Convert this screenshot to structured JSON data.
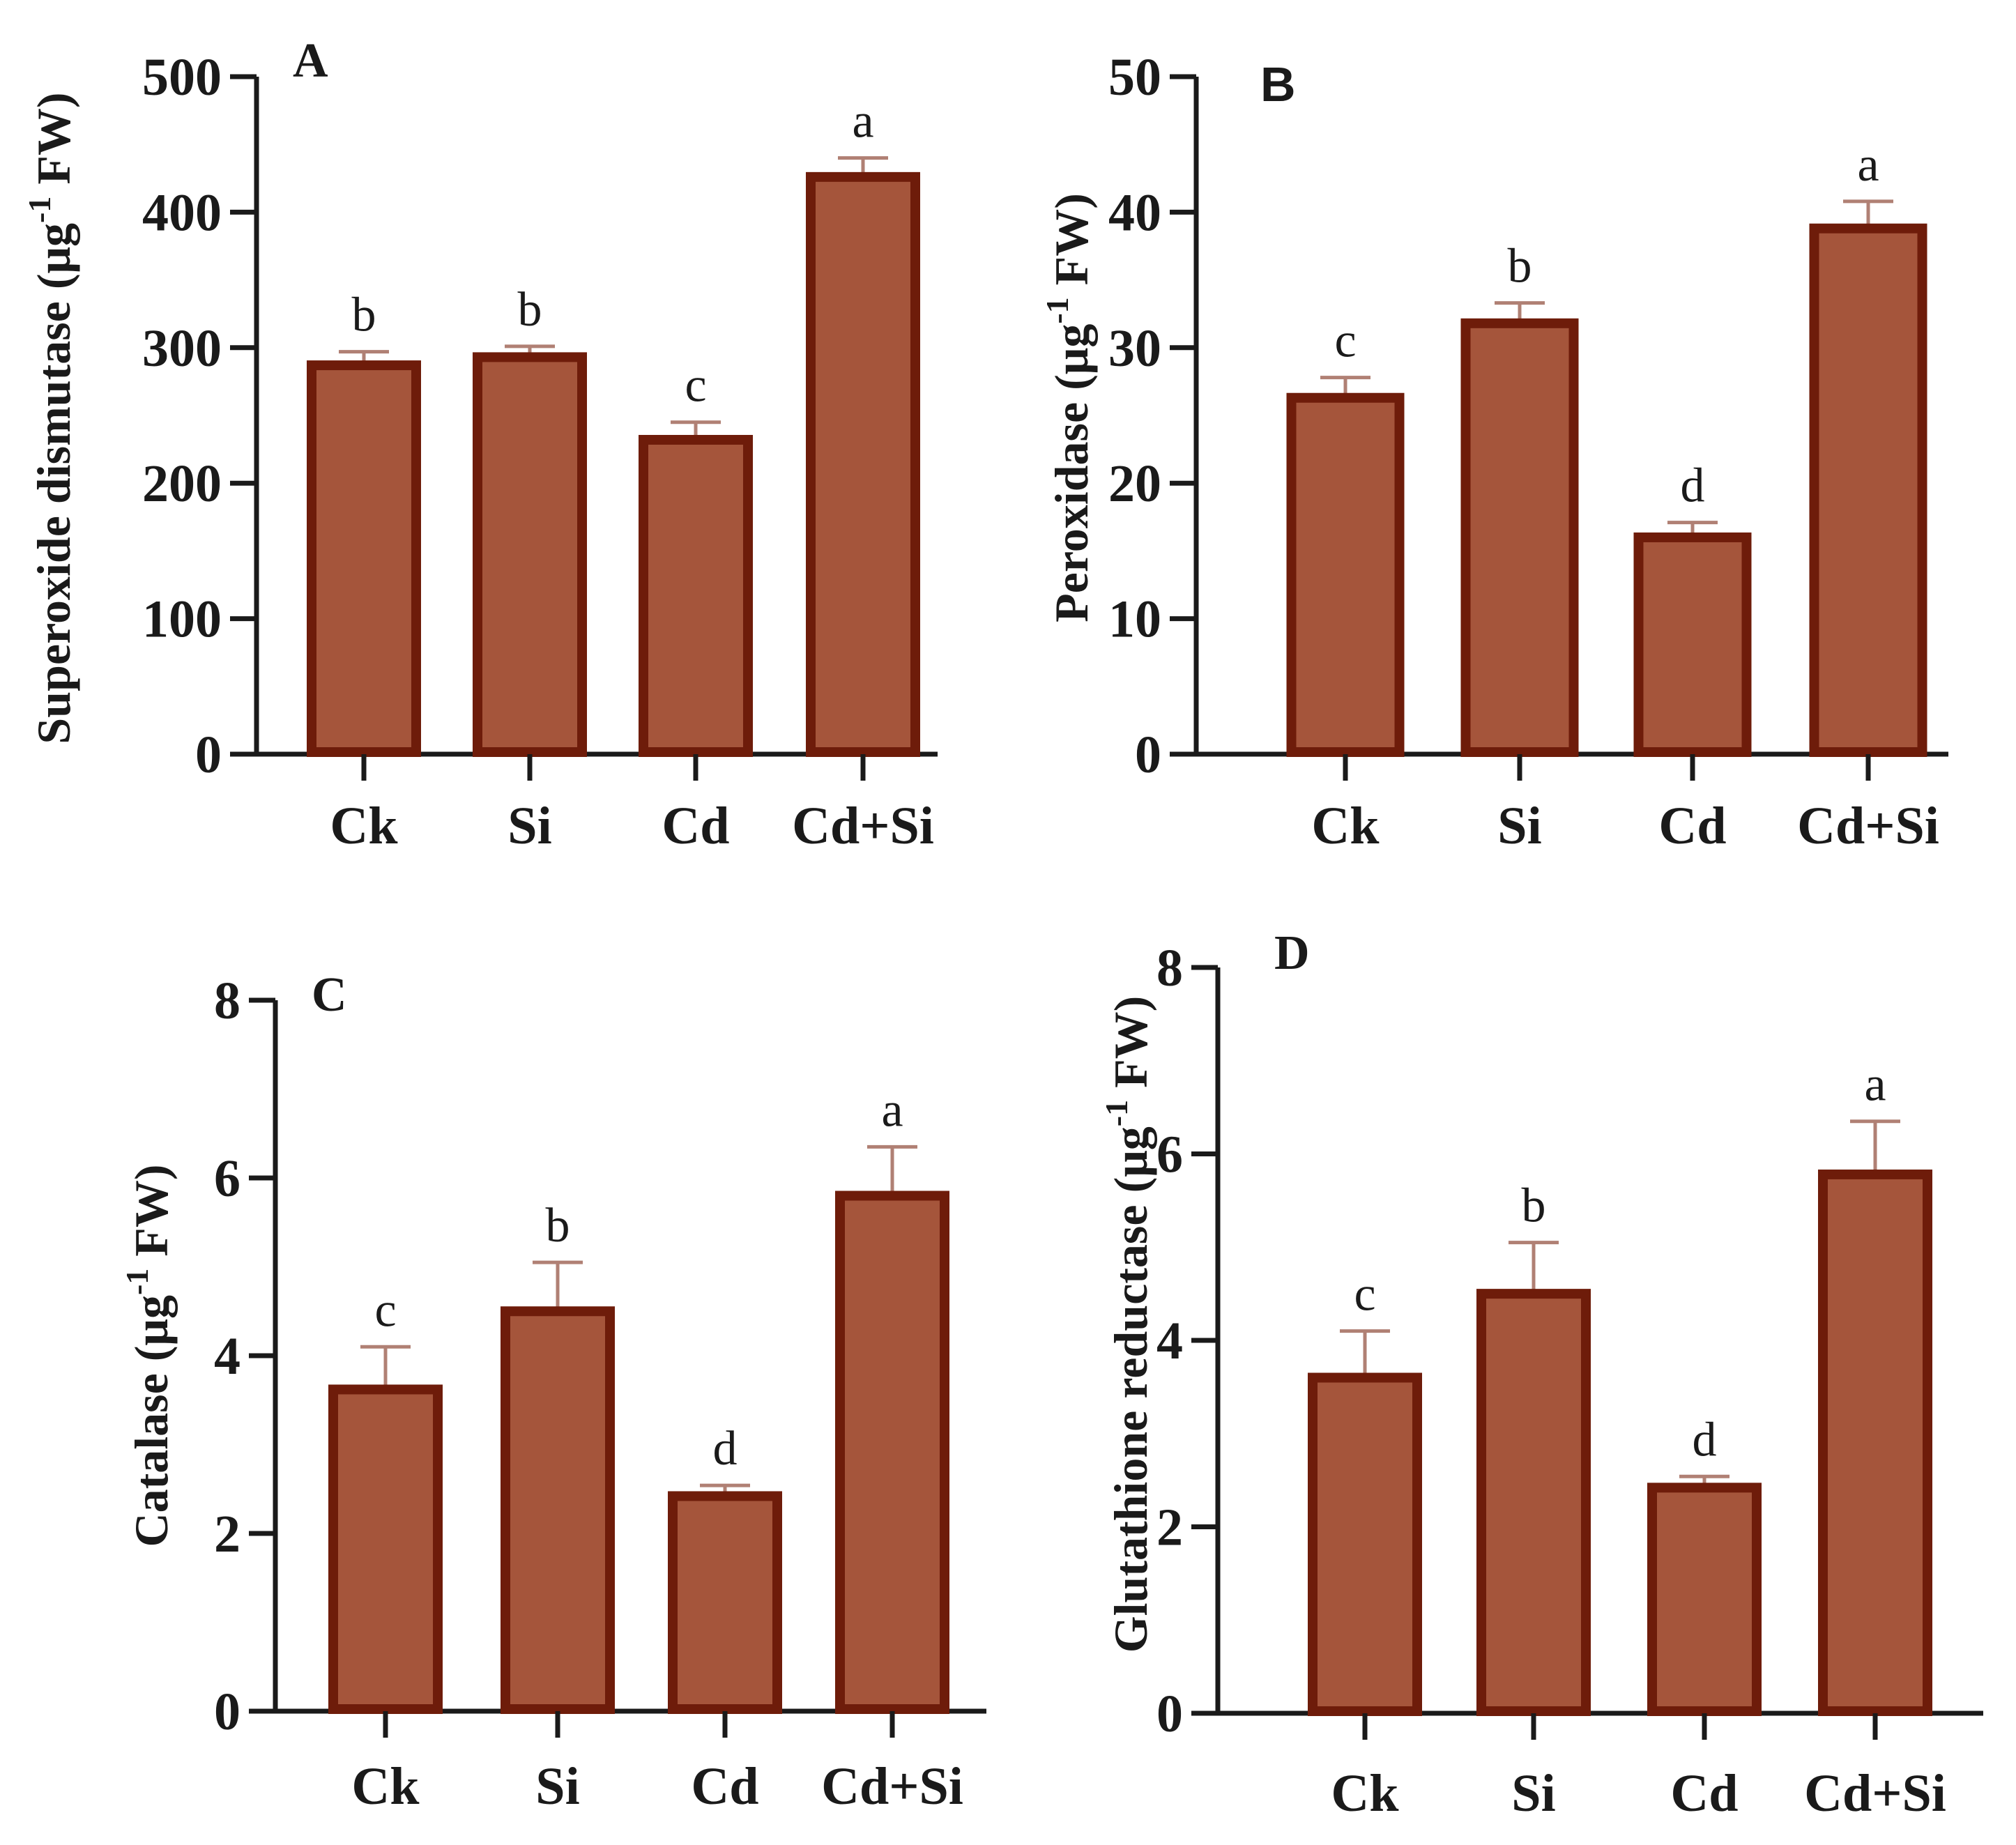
{
  "theme": {
    "bar_fill": "#A5553B",
    "bar_edge": "#6E1C0A",
    "error_color": "#B08074",
    "axis_color": "#1a1a1a"
  },
  "chart_data": [
    {
      "type": "bar",
      "panel": "A",
      "categories": [
        "Ck",
        "Si",
        "Cd",
        "Cd+Si"
      ],
      "values": [
        287,
        293,
        232,
        426
      ],
      "errors": [
        10,
        8,
        13,
        14
      ],
      "letters": [
        "b",
        "b",
        "c",
        "a"
      ],
      "ylabel_main": "Superoxide dismutase (μg",
      "ylabel_sup": "-1",
      "ylabel_tail": " FW)",
      "ylim": [
        0,
        500
      ],
      "yticks": [
        0,
        100,
        200,
        300,
        400,
        500
      ]
    },
    {
      "type": "bar",
      "panel": "B",
      "categories": [
        "Ck",
        "Si",
        "Cd",
        "Cd+Si"
      ],
      "values": [
        26.3,
        31.8,
        16.0,
        38.8
      ],
      "errors": [
        1.5,
        1.5,
        1.1,
        2.0
      ],
      "letters": [
        "c",
        "b",
        "d",
        "a"
      ],
      "ylabel_main": "Peroxidase (μg",
      "ylabel_sup": "-1",
      "ylabel_tail": " FW)",
      "ylim": [
        0,
        50
      ],
      "yticks": [
        0,
        10,
        20,
        30,
        40,
        50
      ]
    },
    {
      "type": "bar",
      "panel": "C",
      "categories": [
        "Ck",
        "Si",
        "Cd",
        "Cd+Si"
      ],
      "values": [
        3.62,
        4.5,
        2.42,
        5.8
      ],
      "errors": [
        0.48,
        0.55,
        0.12,
        0.55
      ],
      "letters": [
        "c",
        "b",
        "d",
        "a"
      ],
      "ylabel_main": "Catalase (μg",
      "ylabel_sup": "-1",
      "ylabel_tail": " FW)",
      "ylim": [
        0,
        8
      ],
      "yticks": [
        0,
        2,
        4,
        6,
        8
      ]
    },
    {
      "type": "bar",
      "panel": "D",
      "categories": [
        "Ck",
        "Si",
        "Cd",
        "Cd+Si"
      ],
      "values": [
        3.6,
        4.5,
        2.42,
        5.78
      ],
      "errors": [
        0.5,
        0.55,
        0.12,
        0.57
      ],
      "letters": [
        "c",
        "b",
        "d",
        "a"
      ],
      "ylabel_main": "Glutathione reductase (μg",
      "ylabel_sup": "-1",
      "ylabel_tail": " FW)",
      "ylim": [
        0,
        8
      ],
      "yticks": [
        0,
        2,
        4,
        6,
        8
      ]
    }
  ]
}
